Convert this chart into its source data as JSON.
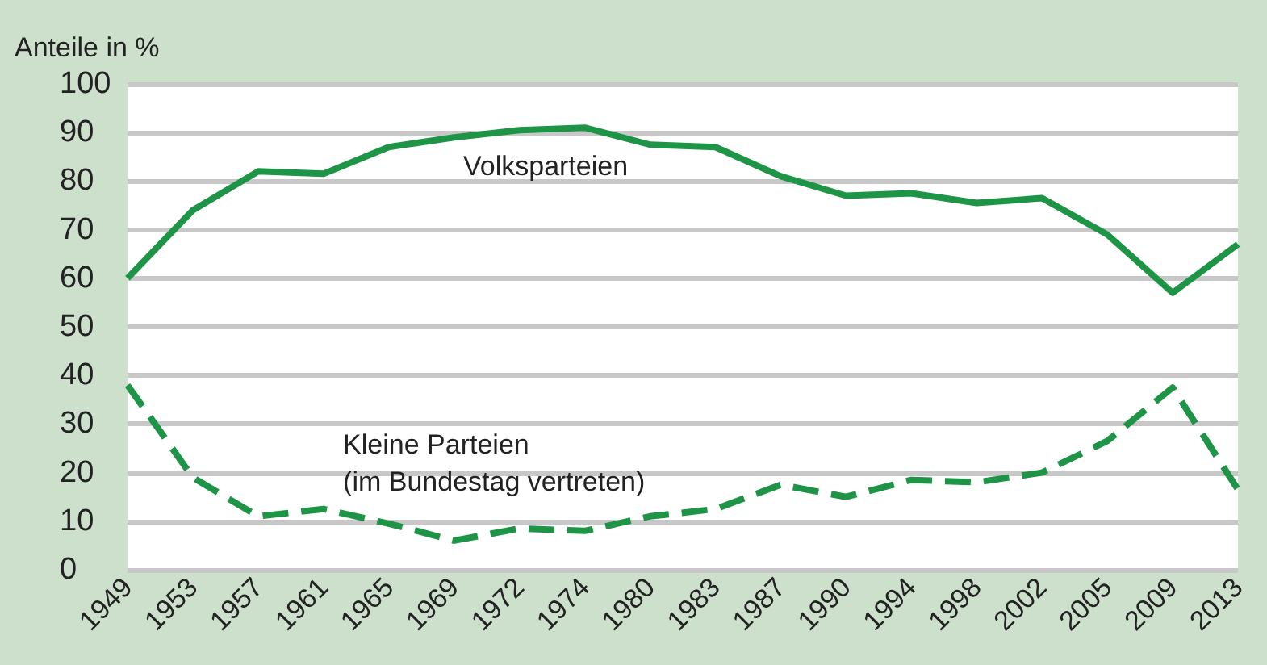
{
  "chart_data": {
    "type": "line",
    "ylabel": "Anteile in %",
    "categories": [
      "1949",
      "1953",
      "1957",
      "1961",
      "1965",
      "1969",
      "1972",
      "1974",
      "1980",
      "1983",
      "1987",
      "1990",
      "1994",
      "1998",
      "2002",
      "2005",
      "2009",
      "2013"
    ],
    "series": [
      {
        "name": "Volksparteien",
        "color": "#1e9447",
        "line_style": "solid",
        "values": [
          60,
          74,
          82,
          81.5,
          87,
          89,
          90.5,
          91,
          87.5,
          87,
          81,
          77,
          77.5,
          75.5,
          76.5,
          69,
          57,
          67
        ]
      },
      {
        "name": "Kleine Parteien\n(im Bundestag vertreten)",
        "color": "#1e9447",
        "line_style": "dashed",
        "values": [
          38,
          19,
          11,
          12.5,
          9.5,
          6,
          8.5,
          8,
          11,
          12.5,
          17.5,
          15,
          18.5,
          18,
          20,
          26.5,
          37.5,
          16.5
        ]
      }
    ],
    "ylim": [
      0,
      100
    ],
    "yticks": [
      0,
      10,
      20,
      30,
      40,
      50,
      60,
      70,
      80,
      90,
      100
    ],
    "grid": "y",
    "legend": false,
    "marker": "none"
  }
}
